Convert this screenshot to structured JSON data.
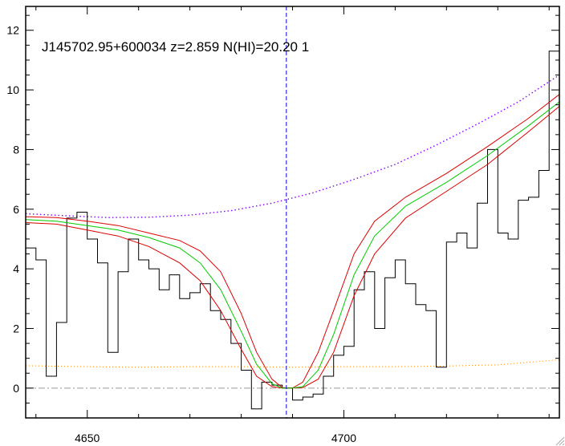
{
  "chart_data": {
    "type": "line",
    "title": "J145702.95+600034 z=2.859 N(HI)=20.20 1",
    "xlabel": "",
    "ylabel": "",
    "xlim": [
      4638,
      4742
    ],
    "ylim": [
      -1,
      12.8
    ],
    "x_ticks": [
      4650,
      4700
    ],
    "x_tick_labels": [
      "4650",
      "4700"
    ],
    "y_ticks": [
      0,
      2,
      4,
      6,
      8,
      10,
      12
    ],
    "y_tick_labels": [
      "0",
      "2",
      "4",
      "6",
      "8",
      "10",
      "12"
    ],
    "grid": false,
    "colors": {
      "flux": "#000000",
      "model": "#00cc00",
      "model_bounds": "#dd0000",
      "continuum": "#8800ff",
      "error": "#ff8800",
      "line_center": "#0000dd",
      "zero_line": "#999999"
    },
    "line_center_x": 4688.8,
    "flux": {
      "x": [
        4638,
        4640,
        4642,
        4644,
        4646,
        4648,
        4650,
        4652,
        4654,
        4656,
        4658,
        4660,
        4662,
        4664,
        4666,
        4668,
        4670,
        4672,
        4674,
        4676,
        4678,
        4680,
        4682,
        4684,
        4686,
        4688,
        4690,
        4692,
        4694,
        4696,
        4698,
        4700,
        4702,
        4704,
        4706,
        4708,
        4710,
        4712,
        4714,
        4716,
        4718,
        4720,
        4722,
        4724,
        4726,
        4728,
        4730,
        4732,
        4734,
        4736,
        4738,
        4740,
        4742
      ],
      "y": [
        4.7,
        4.3,
        0.4,
        2.2,
        5.7,
        5.9,
        5.0,
        4.2,
        1.2,
        3.9,
        5.0,
        4.3,
        4.0,
        3.3,
        3.8,
        3.0,
        3.2,
        3.5,
        2.6,
        2.3,
        1.5,
        0.6,
        -0.7,
        0.2,
        0.1,
        0.0,
        -0.4,
        -0.3,
        -0.2,
        0.4,
        1.1,
        1.4,
        3.3,
        3.9,
        2.0,
        3.7,
        4.3,
        3.5,
        2.8,
        2.6,
        0.7,
        4.9,
        5.2,
        4.7,
        6.2,
        8.0,
        5.2,
        5.0,
        6.3,
        6.4,
        7.3,
        11.3,
        12.0
      ]
    },
    "model": {
      "x": [
        4638,
        4644,
        4650,
        4656,
        4662,
        4668,
        4672,
        4676,
        4680,
        4683,
        4686,
        4688,
        4690,
        4692,
        4695,
        4698,
        4702,
        4706,
        4712,
        4720,
        4728,
        4736,
        4742
      ],
      "y": [
        5.65,
        5.6,
        5.45,
        5.3,
        5.05,
        4.7,
        4.2,
        3.3,
        1.9,
        0.8,
        0.15,
        0.0,
        0.0,
        0.05,
        0.6,
        1.8,
        3.8,
        5.1,
        6.1,
        6.9,
        7.8,
        8.8,
        9.6
      ]
    },
    "model_upper": {
      "x": [
        4638,
        4644,
        4650,
        4656,
        4662,
        4668,
        4672,
        4676,
        4680,
        4683,
        4686,
        4688,
        4690,
        4692,
        4695,
        4698,
        4702,
        4706,
        4712,
        4720,
        4728,
        4736,
        4742
      ],
      "y": [
        5.75,
        5.72,
        5.6,
        5.45,
        5.2,
        4.95,
        4.6,
        3.9,
        2.5,
        1.2,
        0.3,
        0.02,
        0.0,
        0.2,
        1.2,
        2.6,
        4.5,
        5.6,
        6.4,
        7.2,
        8.1,
        9.05,
        9.85
      ]
    },
    "model_lower": {
      "x": [
        4638,
        4644,
        4650,
        4656,
        4662,
        4668,
        4672,
        4676,
        4680,
        4683,
        4686,
        4688,
        4690,
        4692,
        4695,
        4698,
        4702,
        4706,
        4712,
        4720,
        4728,
        4736,
        4742
      ],
      "y": [
        5.55,
        5.5,
        5.3,
        5.1,
        4.75,
        4.2,
        3.6,
        2.6,
        1.3,
        0.4,
        0.05,
        0.0,
        0.0,
        0.02,
        0.3,
        1.2,
        3.1,
        4.5,
        5.7,
        6.6,
        7.5,
        8.6,
        9.45
      ]
    },
    "continuum": {
      "x": [
        4638,
        4646,
        4654,
        4662,
        4670,
        4678,
        4686,
        4694,
        4702,
        4710,
        4718,
        4726,
        4734,
        4742
      ],
      "y": [
        5.85,
        5.78,
        5.72,
        5.73,
        5.8,
        5.95,
        6.2,
        6.55,
        7.0,
        7.5,
        8.15,
        8.85,
        9.6,
        10.5
      ]
    },
    "error": {
      "x": [
        4638,
        4650,
        4660,
        4670,
        4680,
        4690,
        4700,
        4710,
        4720,
        4730,
        4742
      ],
      "y": [
        0.75,
        0.72,
        0.7,
        0.72,
        0.72,
        0.7,
        0.72,
        0.72,
        0.74,
        0.78,
        0.95
      ]
    },
    "zero_level": 0
  }
}
